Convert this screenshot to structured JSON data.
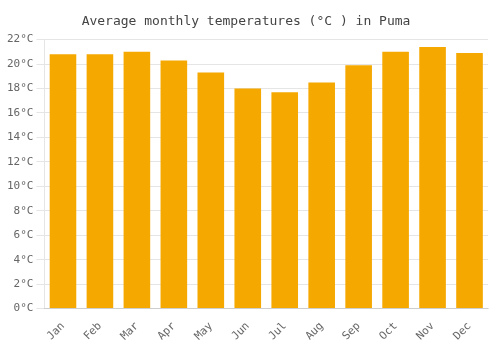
{
  "chart_data": {
    "type": "bar",
    "title": "Average monthly temperatures (°C ) in Puma",
    "categories": [
      "Jan",
      "Feb",
      "Mar",
      "Apr",
      "May",
      "Jun",
      "Jul",
      "Aug",
      "Sep",
      "Oct",
      "Nov",
      "Dec"
    ],
    "values": [
      20.8,
      20.8,
      21.0,
      20.3,
      19.3,
      18.0,
      17.7,
      18.5,
      19.9,
      21.0,
      21.4,
      20.9
    ],
    "color": "#F5A800",
    "ylim": [
      0,
      22
    ],
    "yticks": [
      {
        "value": 0,
        "label": "0°C"
      },
      {
        "value": 2,
        "label": "2°C"
      },
      {
        "value": 4,
        "label": "4°C"
      },
      {
        "value": 6,
        "label": "6°C"
      },
      {
        "value": 8,
        "label": "8°C"
      },
      {
        "value": 10,
        "label": "10°C"
      },
      {
        "value": 12,
        "label": "12°C"
      },
      {
        "value": 14,
        "label": "14°C"
      },
      {
        "value": 16,
        "label": "16°C"
      },
      {
        "value": 18,
        "label": "18°C"
      },
      {
        "value": 20,
        "label": "20°C"
      },
      {
        "value": 22,
        "label": "22°C"
      }
    ],
    "grid": true
  }
}
